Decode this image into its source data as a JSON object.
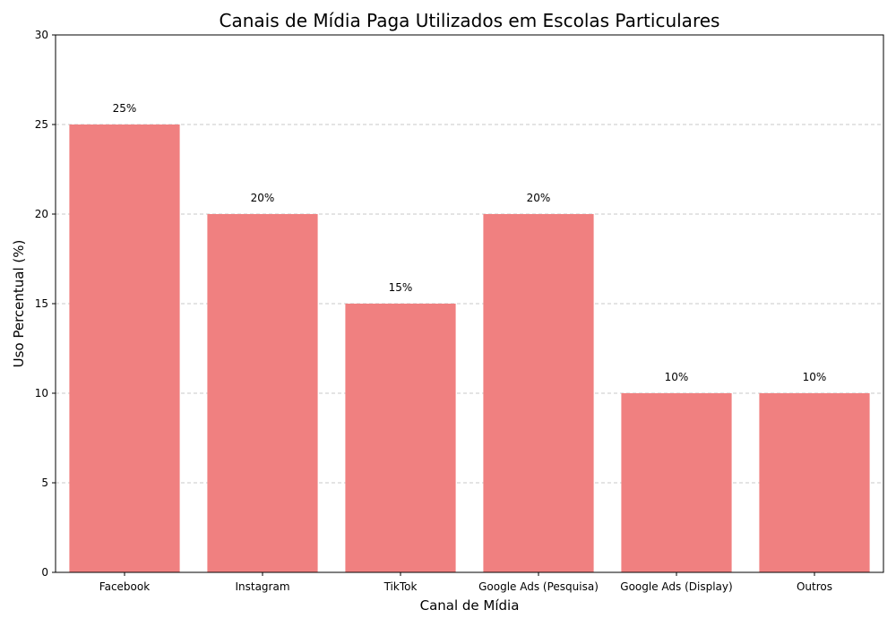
{
  "chart_data": {
    "type": "bar",
    "title": "Canais de Mídia Paga Utilizados em Escolas Particulares",
    "xlabel": "Canal de Mídia",
    "ylabel": "Uso Percentual (%)",
    "categories": [
      "Facebook",
      "Instagram",
      "TikTok",
      "Google Ads (Pesquisa)",
      "Google Ads (Display)",
      "Outros"
    ],
    "values": [
      25,
      20,
      15,
      20,
      10,
      10
    ],
    "data_labels": [
      "25%",
      "20%",
      "15%",
      "20%",
      "10%",
      "10%"
    ],
    "ylim": [
      0,
      30
    ],
    "yticks": [
      "0",
      "5",
      "10",
      "15",
      "20",
      "25",
      "30"
    ],
    "grid": "y-dashed",
    "bar_color": "#f08080",
    "grid_color": "#c8c8c8"
  }
}
